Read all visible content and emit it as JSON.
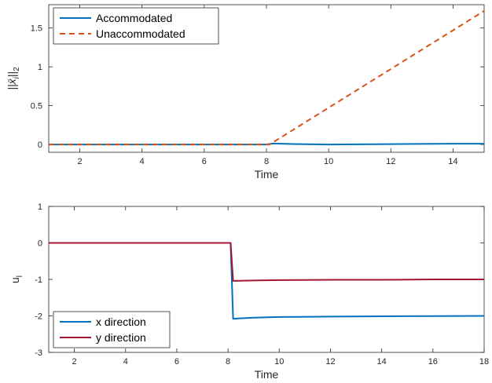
{
  "chart_data": [
    {
      "type": "line",
      "xlabel": "Time",
      "ylabel_base": "||x̄",
      "ylabel_sub": "i",
      "ylabel_tail": "||",
      "ylabel_norm": "2",
      "xlim": [
        1,
        15
      ],
      "ylim": [
        -0.1,
        1.8
      ],
      "xticks": [
        2,
        4,
        6,
        8,
        10,
        12,
        14
      ],
      "yticks": [
        0,
        0.5,
        1,
        1.5
      ],
      "ytick_labels": [
        "0",
        "0.5",
        "1",
        "1.5"
      ],
      "legend_position": "top-left",
      "grid": false,
      "series": [
        {
          "name": "Accommodated",
          "color": "#0072BD",
          "dash": "solid",
          "x": [
            1,
            8,
            8.2,
            9,
            10,
            12,
            14,
            15
          ],
          "y": [
            0,
            0,
            0.012,
            0.005,
            0.0,
            0.005,
            0.01,
            0.01
          ]
        },
        {
          "name": "Unaccommodated",
          "color": "#D95319",
          "dash": "dashed",
          "x": [
            1,
            8.1,
            15
          ],
          "y": [
            0,
            0,
            1.72
          ]
        }
      ]
    },
    {
      "type": "line",
      "xlabel": "Time",
      "ylabel": "u",
      "ylabel_sub": "l",
      "xlim": [
        1,
        18
      ],
      "ylim": [
        -3,
        1
      ],
      "xticks": [
        2,
        4,
        6,
        8,
        10,
        12,
        14,
        16,
        18
      ],
      "yticks": [
        -3,
        -2,
        -1,
        0,
        1
      ],
      "ytick_labels": [
        "-3",
        "-2",
        "-1",
        "0",
        "1"
      ],
      "legend_position": "bottom-left",
      "grid": false,
      "series": [
        {
          "name": "x direction",
          "color": "#0072BD",
          "dash": "solid",
          "x": [
            1,
            8.1,
            8.2,
            8.4,
            9,
            10,
            12,
            14,
            16,
            18
          ],
          "y": [
            0,
            0,
            -2.08,
            -2.07,
            -2.05,
            -2.03,
            -2.02,
            -2.01,
            -2.005,
            -2.0
          ]
        },
        {
          "name": "y direction",
          "color": "#A2142F",
          "dash": "solid",
          "x": [
            1,
            8.1,
            8.2,
            9,
            10,
            12,
            14,
            16,
            18
          ],
          "y": [
            0,
            0,
            -1.04,
            -1.03,
            -1.02,
            -1.01,
            -1.01,
            -1.0,
            -1.0
          ]
        }
      ]
    }
  ]
}
